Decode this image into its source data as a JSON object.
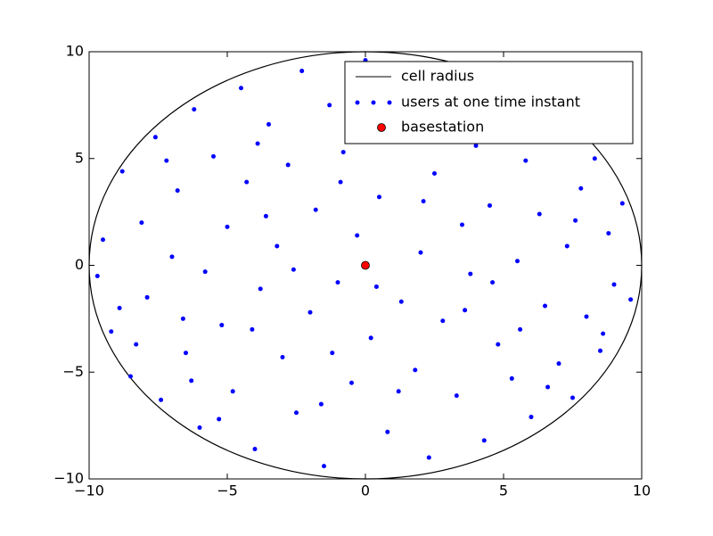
{
  "chart_data": {
    "type": "scatter",
    "xlim": [
      -10,
      10
    ],
    "ylim": [
      -10,
      10
    ],
    "xticks": [
      {
        "value": -10,
        "label": "−10"
      },
      {
        "value": -5,
        "label": "−5"
      },
      0,
      5,
      10
    ],
    "yticks": [
      {
        "value": -10,
        "label": "−10"
      },
      {
        "value": -5,
        "label": "−5"
      },
      0,
      5,
      10
    ],
    "legend": "upper right",
    "circle": {
      "name": "cell radius",
      "color": "#000000",
      "radius": 10
    },
    "series": [
      {
        "name": "users at one time instant",
        "color": "#0000ff",
        "x": [
          -9.5,
          -9.2,
          -8.8,
          -8.5,
          -8.1,
          -7.9,
          -7.6,
          -7.4,
          -7.0,
          -6.8,
          -6.5,
          -6.2,
          -6.0,
          -5.8,
          -5.5,
          -5.2,
          -5.0,
          -4.8,
          -4.5,
          -4.3,
          -4.0,
          -3.8,
          -3.5,
          -3.2,
          -3.0,
          -2.8,
          -2.5,
          -2.3,
          -2.0,
          -1.8,
          -1.5,
          -1.3,
          -1.0,
          -0.8,
          -0.5,
          -0.3,
          0.0,
          0.2,
          0.5,
          0.8,
          1.0,
          1.3,
          1.5,
          1.8,
          2.0,
          2.3,
          2.5,
          2.8,
          3.0,
          3.3,
          3.5,
          3.8,
          4.0,
          4.3,
          4.5,
          4.8,
          5.0,
          5.3,
          5.5,
          5.8,
          6.0,
          6.3,
          6.5,
          6.8,
          7.0,
          7.3,
          7.5,
          7.8,
          8.0,
          8.3,
          8.5,
          8.8,
          9.0,
          9.3,
          9.6,
          -9.7,
          -8.9,
          -8.3,
          -7.2,
          -6.6,
          -5.3,
          -4.1,
          -3.6,
          -2.6,
          -1.6,
          -0.9,
          0.4,
          1.2,
          2.7,
          3.6,
          4.6,
          5.6,
          6.6,
          7.6,
          8.6,
          6.1,
          -6.3,
          -3.9,
          2.1,
          -1.2
        ],
        "values": [
          1.2,
          -3.1,
          4.4,
          -5.2,
          2.0,
          -1.5,
          6.0,
          -6.3,
          0.4,
          3.5,
          -4.1,
          7.3,
          -7.6,
          -0.3,
          5.1,
          -2.8,
          1.8,
          -5.9,
          8.3,
          3.9,
          -8.6,
          -1.1,
          6.6,
          0.9,
          -4.3,
          4.7,
          -6.9,
          9.1,
          -2.2,
          2.6,
          -9.4,
          7.5,
          -0.8,
          5.3,
          -5.5,
          1.4,
          9.6,
          -3.4,
          3.2,
          -7.8,
          6.2,
          -1.7,
          8.4,
          -4.9,
          0.6,
          -9.0,
          4.3,
          -2.6,
          7.0,
          -6.1,
          1.9,
          -0.4,
          5.6,
          -8.2,
          2.8,
          -3.7,
          8.0,
          -5.3,
          0.2,
          4.9,
          -7.1,
          2.4,
          -1.9,
          6.5,
          -4.6,
          0.9,
          -6.2,
          3.6,
          -2.4,
          5.0,
          -4.0,
          1.5,
          -0.9,
          2.9,
          -1.6,
          -0.5,
          -2.0,
          -3.7,
          4.9,
          -2.5,
          -7.2,
          -3.0,
          2.3,
          -0.2,
          -6.5,
          3.9,
          -1.0,
          -5.9,
          6.0,
          -2.1,
          -0.8,
          -3.0,
          -5.7,
          2.1,
          -3.2,
          6.9,
          -5.4,
          5.7,
          3.0,
          -4.1
        ]
      },
      {
        "name": "basestation",
        "color": "#ff0000",
        "x": [
          0
        ],
        "values": [
          0
        ]
      }
    ]
  }
}
